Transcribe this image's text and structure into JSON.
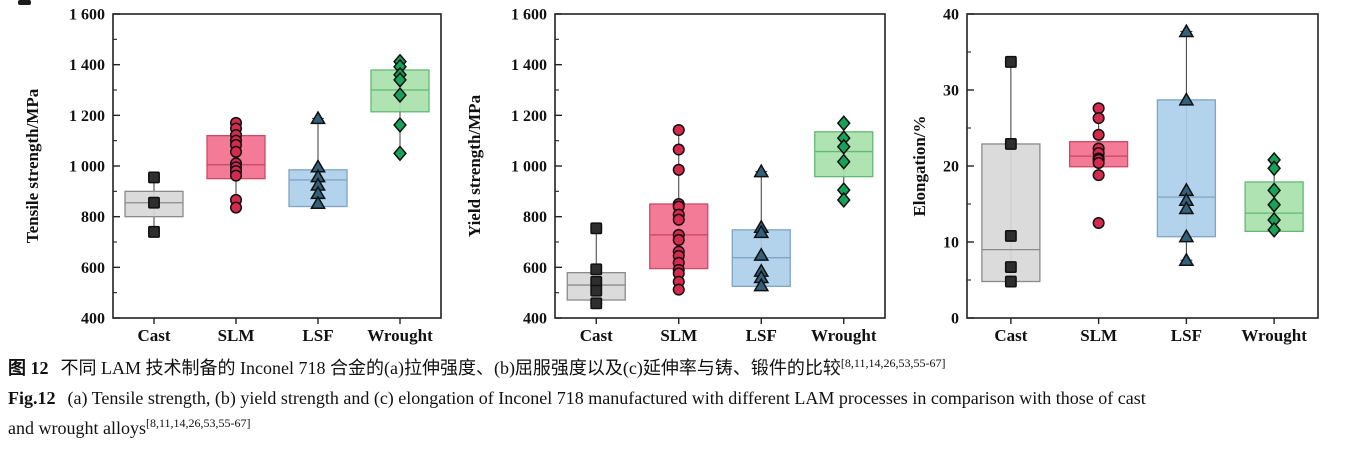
{
  "caption": {
    "zh_label": "图 12",
    "zh_text": "不同 LAM 技术制备的 Inconel 718 合金的(a)拉伸强度、(b)屈服强度以及(c)延伸率与铸、锻件的比较",
    "zh_ref": "[8,11,14,26,53,55-67]",
    "en_label": "Fig.12",
    "en_text": "(a) Tensile strength, (b) yield strength and (c) elongation of Inconel 718 manufactured with different LAM processes in comparison with those of cast",
    "en_text2": "and wrought alloys",
    "en_ref": "[8,11,14,26,53,55-67]"
  },
  "chart_data": [
    {
      "type": "box",
      "panel": "a",
      "ylabel": "Tensile strength/MPa",
      "ylim": [
        400,
        1600
      ],
      "yticks": [
        400,
        600,
        800,
        1000,
        1200,
        1400,
        1600
      ],
      "ytick_labels": [
        "400",
        "600",
        "800",
        "1 000",
        "1 200",
        "1 400",
        "1 600"
      ],
      "yminor": [
        500,
        700,
        900,
        1100,
        1300,
        1500
      ],
      "grid": false,
      "legend": null,
      "categories": [
        "Cast",
        "SLM",
        "LSF",
        "Wrought"
      ],
      "series": [
        {
          "name": "Cast",
          "marker": "square",
          "colors": {
            "box_fill": "#d8d8d8",
            "box_edge": "#8b8b8b",
            "median": "#8b8b8b",
            "marker": "#2e2e2e"
          },
          "box": {
            "q1": 800,
            "median": 855,
            "q3": 900,
            "whisker_low": 740,
            "whisker_high": 955
          },
          "points": [
            955,
            855,
            740
          ]
        },
        {
          "name": "SLM",
          "marker": "circle",
          "colors": {
            "box_fill": "#f2708e",
            "box_edge": "#cc4a68",
            "median": "#c74563",
            "marker": "#d6294e"
          },
          "box": {
            "q1": 950,
            "median": 1005,
            "q3": 1120,
            "whisker_low": 836,
            "whisker_high": 1170
          },
          "points": [
            1170,
            1148,
            1122,
            1100,
            1083,
            1056,
            1010,
            995,
            980,
            962,
            866,
            836
          ]
        },
        {
          "name": "LSF",
          "marker": "triangle",
          "colors": {
            "box_fill": "#abcfe9",
            "box_edge": "#7fa4c4",
            "median": "#7fa4c4",
            "marker": "#33607a"
          },
          "box": {
            "q1": 840,
            "median": 945,
            "q3": 985,
            "whisker_low": 840,
            "whisker_high": 1188
          },
          "points": [
            1188,
            997,
            958,
            925,
            892,
            853
          ]
        },
        {
          "name": "Wrought",
          "marker": "diamond",
          "colors": {
            "box_fill": "#a8e2ab",
            "box_edge": "#63b873",
            "median": "#63b873",
            "marker": "#17a25a"
          },
          "box": {
            "q1": 1214,
            "median": 1300,
            "q3": 1379,
            "whisker_low": 1050,
            "whisker_high": 1412
          },
          "points": [
            1412,
            1392,
            1360,
            1340,
            1280,
            1162,
            1050
          ]
        }
      ]
    },
    {
      "type": "box",
      "panel": "b",
      "ylabel": "Yield strength/MPa",
      "ylim": [
        400,
        1600
      ],
      "yticks": [
        400,
        600,
        800,
        1000,
        1200,
        1400,
        1600
      ],
      "ytick_labels": [
        "400",
        "600",
        "800",
        "1 000",
        "1 200",
        "1 400",
        "1 600"
      ],
      "yminor": [
        500,
        700,
        900,
        1100,
        1300,
        1500
      ],
      "grid": false,
      "legend": null,
      "categories": [
        "Cast",
        "SLM",
        "LSF",
        "Wrought"
      ],
      "series": [
        {
          "name": "Cast",
          "marker": "square",
          "colors": {
            "box_fill": "#d8d8d8",
            "box_edge": "#8b8b8b",
            "median": "#8b8b8b",
            "marker": "#2e2e2e"
          },
          "box": {
            "q1": 471,
            "median": 530,
            "q3": 579,
            "whisker_low": 458,
            "whisker_high": 754
          },
          "points": [
            754,
            592,
            543,
            508,
            458
          ]
        },
        {
          "name": "SLM",
          "marker": "circle",
          "colors": {
            "box_fill": "#f2708e",
            "box_edge": "#cc4a68",
            "median": "#c74563",
            "marker": "#d6294e"
          },
          "box": {
            "q1": 595,
            "median": 728,
            "q3": 850,
            "whisker_low": 512,
            "whisker_high": 1142
          },
          "points": [
            1142,
            1065,
            985,
            850,
            840,
            808,
            788,
            728,
            708,
            662,
            645,
            618,
            590,
            576,
            543,
            512
          ]
        },
        {
          "name": "LSF",
          "marker": "triangle",
          "colors": {
            "box_fill": "#abcfe9",
            "box_edge": "#7fa4c4",
            "median": "#7fa4c4",
            "marker": "#33607a"
          },
          "box": {
            "q1": 525,
            "median": 638,
            "q3": 748,
            "whisker_low": 528,
            "whisker_high": 978
          },
          "points": [
            978,
            758,
            738,
            648,
            585,
            560,
            528
          ]
        },
        {
          "name": "Wrought",
          "marker": "diamond",
          "colors": {
            "box_fill": "#a8e2ab",
            "box_edge": "#63b873",
            "median": "#63b873",
            "marker": "#17a25a"
          },
          "box": {
            "q1": 958,
            "median": 1057,
            "q3": 1135,
            "whisker_low": 866,
            "whisker_high": 1169
          },
          "points": [
            1169,
            1110,
            1076,
            1017,
            905,
            866
          ]
        }
      ]
    },
    {
      "type": "box",
      "panel": "c",
      "ylabel": "Elongation/%",
      "ylim": [
        0,
        40
      ],
      "yticks": [
        0,
        10,
        20,
        30,
        40
      ],
      "ytick_labels": [
        "0",
        "10",
        "20",
        "30",
        "40"
      ],
      "yminor": [
        5,
        15,
        25,
        35
      ],
      "grid": false,
      "legend": null,
      "categories": [
        "Cast",
        "SLM",
        "LSF",
        "Wrought"
      ],
      "series": [
        {
          "name": "Cast",
          "marker": "square",
          "colors": {
            "box_fill": "#d8d8d8",
            "box_edge": "#8b8b8b",
            "median": "#8b8b8b",
            "marker": "#2e2e2e"
          },
          "box": {
            "q1": 4.8,
            "median": 9.0,
            "q3": 22.9,
            "whisker_low": 4.8,
            "whisker_high": 33.7
          },
          "points": [
            33.7,
            22.9,
            10.8,
            6.7,
            4.8
          ]
        },
        {
          "name": "SLM",
          "marker": "circle",
          "colors": {
            "box_fill": "#f2708e",
            "box_edge": "#cc4a68",
            "median": "#c74563",
            "marker": "#d6294e"
          },
          "box": {
            "q1": 19.9,
            "median": 21.3,
            "q3": 23.2,
            "whisker_low": 18.8,
            "whisker_high": 27.6
          },
          "points": [
            27.6,
            26.3,
            24.1,
            22.3,
            21.7,
            21.0,
            20.8,
            20.4,
            18.8,
            12.5
          ]
        },
        {
          "name": "LSF",
          "marker": "triangle",
          "colors": {
            "box_fill": "#abcfe9",
            "box_edge": "#7fa4c4",
            "median": "#7fa4c4",
            "marker": "#33607a"
          },
          "box": {
            "q1": 10.7,
            "median": 15.9,
            "q3": 28.7,
            "whisker_low": 7.6,
            "whisker_high": 37.7
          },
          "points": [
            37.7,
            28.7,
            16.8,
            15.5,
            14.4,
            10.7,
            7.6
          ]
        },
        {
          "name": "Wrought",
          "marker": "diamond",
          "colors": {
            "box_fill": "#a8e2ab",
            "box_edge": "#63b873",
            "median": "#63b873",
            "marker": "#17a25a"
          },
          "box": {
            "q1": 11.4,
            "median": 13.8,
            "q3": 17.9,
            "whisker_low": 11.4,
            "whisker_high": 20.8
          },
          "points": [
            20.8,
            19.7,
            16.8,
            14.9,
            12.9,
            11.6
          ]
        }
      ]
    }
  ]
}
